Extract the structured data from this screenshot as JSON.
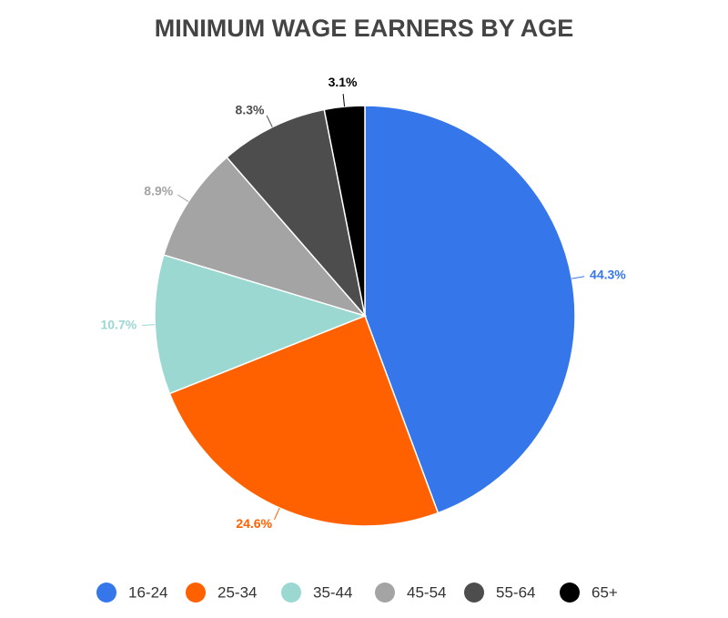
{
  "chart_data": {
    "type": "pie",
    "title": "MINIMUM WAGE EARNERS BY AGE",
    "categories": [
      "16-24",
      "25-34",
      "35-44",
      "45-54",
      "55-64",
      "65+"
    ],
    "values": [
      44.3,
      24.6,
      10.7,
      8.9,
      8.3,
      3.1
    ],
    "value_labels": [
      "44.3%",
      "24.6%",
      "10.7%",
      "8.9%",
      "8.3%",
      "3.1%"
    ],
    "colors": [
      "#3577ea",
      "#ff6100",
      "#9ad8d1",
      "#a4a4a4",
      "#4d4d4d",
      "#000000"
    ],
    "legend": "bottom"
  }
}
